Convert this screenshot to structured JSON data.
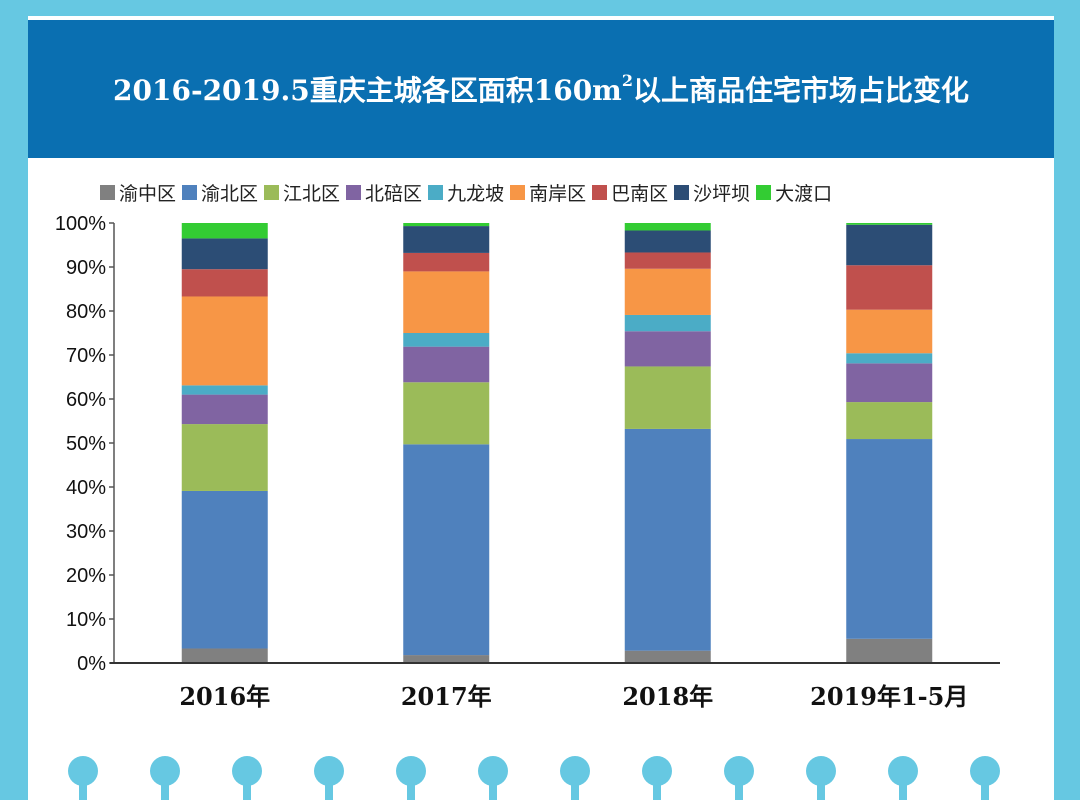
{
  "colors": {
    "page_bg": "#66c8e2",
    "title_bg": "#0a6fb1"
  },
  "title": {
    "main": "2016-2019.5重庆主城各区面积160m",
    "sup": "2",
    "suffix": "以上商品住宅市场占比变化"
  },
  "chart_data": {
    "type": "bar",
    "stacked": true,
    "title": "2016-2019.5重庆主城各区面积160m2以上商品住宅市场占比变化",
    "categories": [
      "2016年",
      "2017年",
      "2018年",
      "2019年1-5月"
    ],
    "ylim": [
      0,
      100
    ],
    "yticks": [
      0,
      10,
      20,
      30,
      40,
      50,
      60,
      70,
      80,
      90,
      100
    ],
    "ytick_labels": [
      "0%",
      "10%",
      "20%",
      "30%",
      "40%",
      "50%",
      "60%",
      "70%",
      "80%",
      "90%",
      "100%"
    ],
    "legend_position": "top",
    "series": [
      {
        "name": "渝中区",
        "color": "#808080",
        "values": [
          3.3,
          1.8,
          2.8,
          5.5
        ]
      },
      {
        "name": "渝北区",
        "color": "#4f81bd",
        "values": [
          35.8,
          47.9,
          50.4,
          45.4
        ]
      },
      {
        "name": "江北区",
        "color": "#9bbb59",
        "values": [
          15.2,
          14.1,
          14.2,
          8.4
        ]
      },
      {
        "name": "北碚区",
        "color": "#8064a2",
        "values": [
          6.7,
          8.1,
          8.0,
          8.8
        ]
      },
      {
        "name": "九龙坡",
        "color": "#4bacc6",
        "values": [
          2.1,
          3.1,
          3.7,
          2.3
        ]
      },
      {
        "name": "南岸区",
        "color": "#f79646",
        "values": [
          20.2,
          14.0,
          10.5,
          9.9
        ]
      },
      {
        "name": "巴南区",
        "color": "#c0504d",
        "values": [
          6.2,
          4.2,
          3.7,
          10.1
        ]
      },
      {
        "name": "沙坪坝",
        "color": "#2c4d75",
        "values": [
          7.0,
          6.1,
          5.0,
          9.2
        ]
      },
      {
        "name": "大渡口",
        "color": "#33cc33",
        "values": [
          3.5,
          0.7,
          1.7,
          0.4
        ]
      }
    ]
  }
}
